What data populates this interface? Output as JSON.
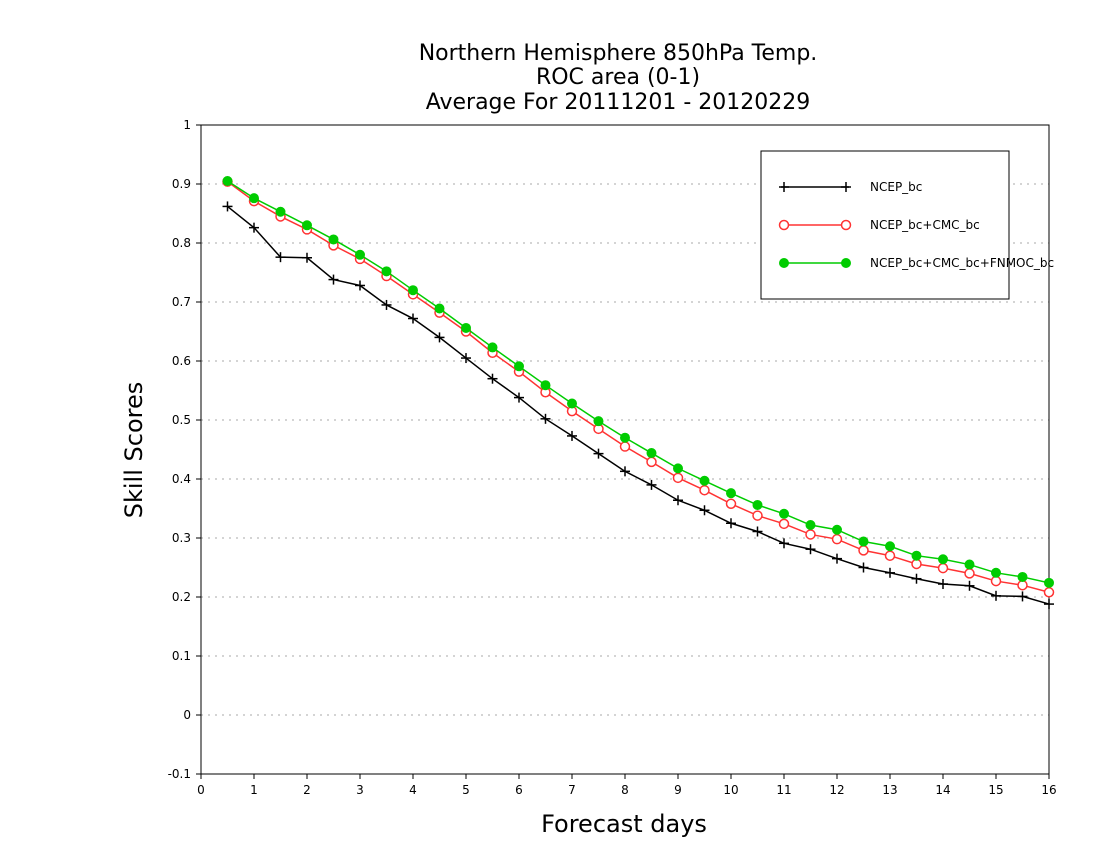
{
  "chart_data": {
    "type": "line",
    "title": [
      "Northern Hemisphere 850hPa Temp.",
      "ROC area (0-1)",
      "Average For 20111201 - 20120229"
    ],
    "xlabel": "Forecast days",
    "ylabel": "Skill Scores",
    "xlim": [
      0,
      16
    ],
    "ylim": [
      -0.1,
      1
    ],
    "xticks": [
      0,
      1,
      2,
      3,
      4,
      5,
      6,
      7,
      8,
      9,
      10,
      11,
      12,
      13,
      14,
      15,
      16
    ],
    "yticks": [
      -0.1,
      0,
      0.1,
      0.2,
      0.3,
      0.4,
      0.5,
      0.6,
      0.7,
      0.8,
      0.9,
      1
    ],
    "ytick_labels": [
      "-0.1",
      "0",
      "0.1",
      "0.2",
      "0.3",
      "0.4",
      "0.5",
      "0.6",
      "0.7",
      "0.8",
      "0.9",
      "1"
    ],
    "grid": "horizontal-dotted",
    "legend_position": "top-right",
    "x": [
      0.5,
      1,
      1.5,
      2,
      2.5,
      3,
      3.5,
      4,
      4.5,
      5,
      5.5,
      6,
      6.5,
      7,
      7.5,
      8,
      8.5,
      9,
      9.5,
      10,
      10.5,
      11,
      11.5,
      12,
      12.5,
      13,
      13.5,
      14,
      14.5,
      15,
      15.5,
      16
    ],
    "series": [
      {
        "name": "NCEP_bc",
        "color": "#000000",
        "marker": "plus",
        "values": [
          0.862,
          0.826,
          0.776,
          0.775,
          0.738,
          0.728,
          0.695,
          0.672,
          0.64,
          0.605,
          0.57,
          0.538,
          0.502,
          0.473,
          0.443,
          0.413,
          0.39,
          0.364,
          0.347,
          0.325,
          0.311,
          0.291,
          0.281,
          0.265,
          0.25,
          0.241,
          0.231,
          0.222,
          0.219,
          0.202,
          0.201,
          0.188
        ]
      },
      {
        "name": "NCEP_bc+CMC_bc",
        "color": "#ff3333",
        "marker": "open-circle",
        "values": [
          0.904,
          0.871,
          0.845,
          0.823,
          0.796,
          0.773,
          0.744,
          0.713,
          0.682,
          0.65,
          0.614,
          0.582,
          0.547,
          0.515,
          0.485,
          0.455,
          0.429,
          0.402,
          0.381,
          0.358,
          0.338,
          0.324,
          0.306,
          0.298,
          0.279,
          0.27,
          0.256,
          0.249,
          0.24,
          0.227,
          0.22,
          0.208
        ]
      },
      {
        "name": "NCEP_bc+CMC_bc+FNMOC_bc",
        "color": "#00cc00",
        "marker": "filled-circle",
        "values": [
          0.905,
          0.876,
          0.853,
          0.83,
          0.806,
          0.78,
          0.752,
          0.72,
          0.689,
          0.656,
          0.623,
          0.591,
          0.559,
          0.528,
          0.498,
          0.47,
          0.444,
          0.418,
          0.397,
          0.376,
          0.356,
          0.341,
          0.322,
          0.314,
          0.294,
          0.286,
          0.27,
          0.264,
          0.255,
          0.241,
          0.234,
          0.224
        ]
      }
    ]
  }
}
